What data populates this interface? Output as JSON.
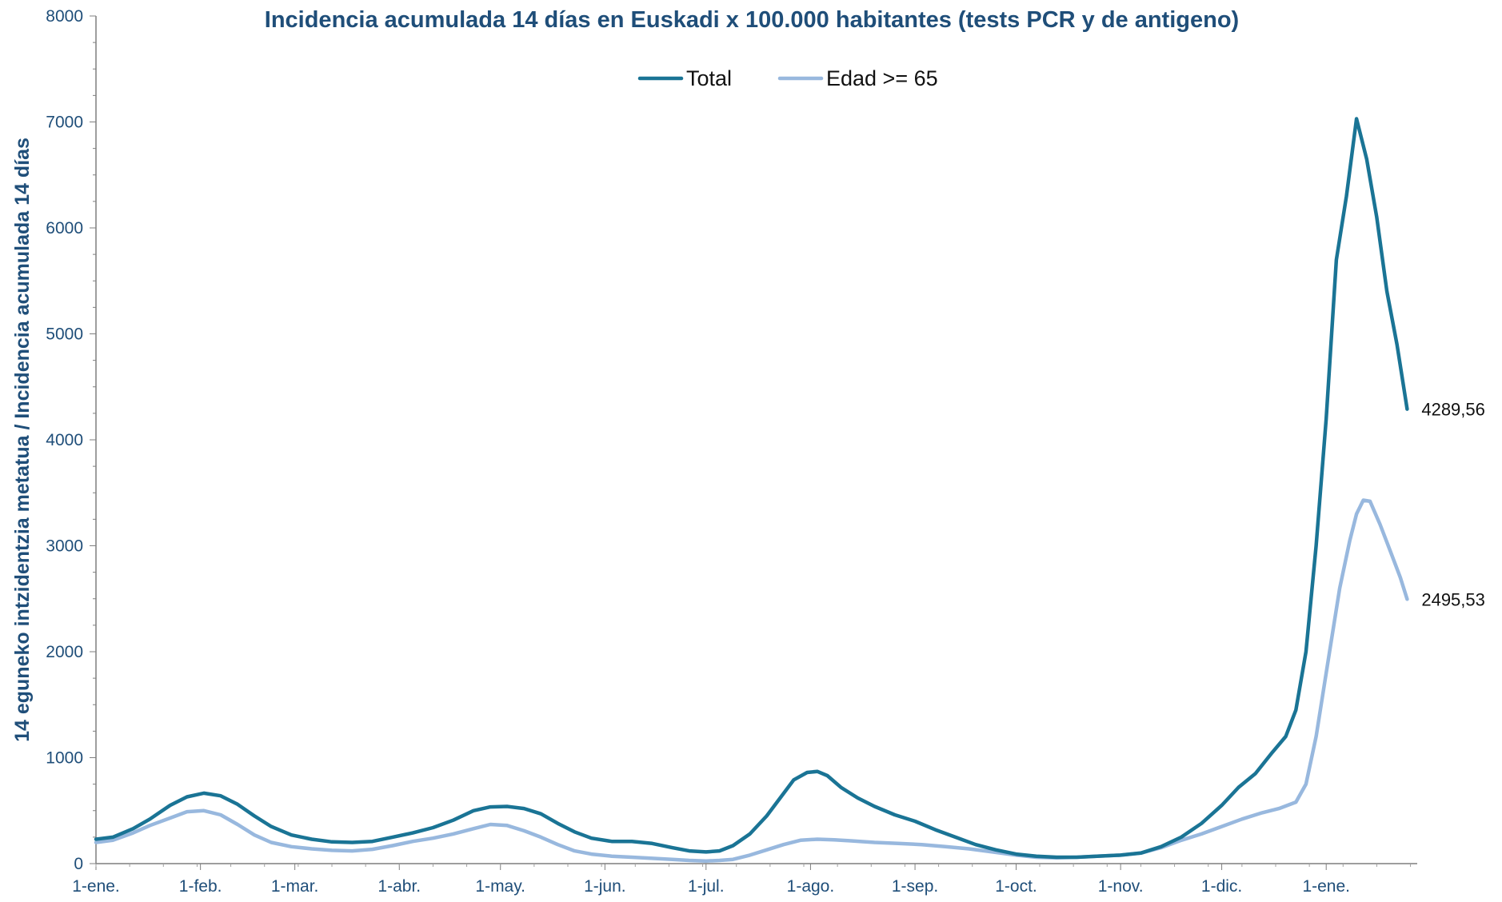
{
  "chart_data": {
    "type": "line",
    "title": "Incidencia acumulada 14 días en Euskadi x 100.000 habitantes (tests PCR y de antigeno)",
    "ylabel": "14 eguneko intzidentzia metatua / Incidencia acumulada 14 días",
    "xlabel": "",
    "ylim": [
      0,
      8000
    ],
    "yticks": [
      "0",
      "1000",
      "2000",
      "3000",
      "4000",
      "5000",
      "6000",
      "7000",
      "8000"
    ],
    "xlim": [
      "2021-01-01",
      "2022-01-28"
    ],
    "xticks": [
      {
        "date": "2021-01-01",
        "label": "1-ene."
      },
      {
        "date": "2021-02-01",
        "label": "1-feb."
      },
      {
        "date": "2021-03-01",
        "label": "1-mar."
      },
      {
        "date": "2021-04-01",
        "label": "1-abr."
      },
      {
        "date": "2021-05-01",
        "label": "1-may."
      },
      {
        "date": "2021-06-01",
        "label": "1-jun."
      },
      {
        "date": "2021-07-01",
        "label": "1-jul."
      },
      {
        "date": "2021-08-01",
        "label": "1-ago."
      },
      {
        "date": "2021-09-01",
        "label": "1-sep."
      },
      {
        "date": "2021-10-01",
        "label": "1-oct."
      },
      {
        "date": "2021-11-01",
        "label": "1-nov."
      },
      {
        "date": "2021-12-01",
        "label": "1-dic."
      },
      {
        "date": "2022-01-01",
        "label": "1-ene."
      }
    ],
    "legend_position": "top-center",
    "grid": false,
    "series": [
      {
        "name": "Total",
        "color": "#1a7495",
        "end_label": "4289,56",
        "points": [
          [
            "2021-01-01",
            230
          ],
          [
            "2021-01-06",
            250
          ],
          [
            "2021-01-12",
            330
          ],
          [
            "2021-01-17",
            420
          ],
          [
            "2021-01-23",
            550
          ],
          [
            "2021-01-28",
            630
          ],
          [
            "2021-02-02",
            665
          ],
          [
            "2021-02-07",
            640
          ],
          [
            "2021-02-12",
            560
          ],
          [
            "2021-02-17",
            450
          ],
          [
            "2021-02-22",
            350
          ],
          [
            "2021-02-28",
            270
          ],
          [
            "2021-03-06",
            230
          ],
          [
            "2021-03-12",
            205
          ],
          [
            "2021-03-18",
            200
          ],
          [
            "2021-03-24",
            210
          ],
          [
            "2021-03-30",
            250
          ],
          [
            "2021-04-05",
            290
          ],
          [
            "2021-04-11",
            340
          ],
          [
            "2021-04-17",
            410
          ],
          [
            "2021-04-23",
            500
          ],
          [
            "2021-04-28",
            535
          ],
          [
            "2021-05-03",
            540
          ],
          [
            "2021-05-08",
            520
          ],
          [
            "2021-05-13",
            470
          ],
          [
            "2021-05-18",
            380
          ],
          [
            "2021-05-23",
            300
          ],
          [
            "2021-05-28",
            240
          ],
          [
            "2021-06-03",
            210
          ],
          [
            "2021-06-09",
            210
          ],
          [
            "2021-06-15",
            190
          ],
          [
            "2021-06-21",
            150
          ],
          [
            "2021-06-26",
            120
          ],
          [
            "2021-07-01",
            110
          ],
          [
            "2021-07-05",
            120
          ],
          [
            "2021-07-09",
            170
          ],
          [
            "2021-07-14",
            280
          ],
          [
            "2021-07-19",
            450
          ],
          [
            "2021-07-23",
            620
          ],
          [
            "2021-07-27",
            790
          ],
          [
            "2021-07-31",
            860
          ],
          [
            "2021-08-03",
            870
          ],
          [
            "2021-08-06",
            830
          ],
          [
            "2021-08-10",
            720
          ],
          [
            "2021-08-15",
            620
          ],
          [
            "2021-08-20",
            540
          ],
          [
            "2021-08-26",
            460
          ],
          [
            "2021-09-01",
            400
          ],
          [
            "2021-09-07",
            320
          ],
          [
            "2021-09-13",
            250
          ],
          [
            "2021-09-19",
            180
          ],
          [
            "2021-09-25",
            130
          ],
          [
            "2021-10-01",
            90
          ],
          [
            "2021-10-07",
            70
          ],
          [
            "2021-10-13",
            60
          ],
          [
            "2021-10-19",
            60
          ],
          [
            "2021-10-25",
            70
          ],
          [
            "2021-11-01",
            80
          ],
          [
            "2021-11-07",
            100
          ],
          [
            "2021-11-13",
            160
          ],
          [
            "2021-11-19",
            250
          ],
          [
            "2021-11-25",
            380
          ],
          [
            "2021-12-01",
            550
          ],
          [
            "2021-12-06",
            720
          ],
          [
            "2021-12-11",
            850
          ],
          [
            "2021-12-16",
            1050
          ],
          [
            "2021-12-20",
            1200
          ],
          [
            "2021-12-23",
            1450
          ],
          [
            "2021-12-26",
            2000
          ],
          [
            "2021-12-29",
            3000
          ],
          [
            "2022-01-01",
            4200
          ],
          [
            "2022-01-04",
            5700
          ],
          [
            "2022-01-07",
            6300
          ],
          [
            "2022-01-10",
            7030
          ],
          [
            "2022-01-13",
            6650
          ],
          [
            "2022-01-16",
            6100
          ],
          [
            "2022-01-19",
            5400
          ],
          [
            "2022-01-22",
            4900
          ],
          [
            "2022-01-25",
            4289.56
          ]
        ]
      },
      {
        "name": "Edad >= 65",
        "color": "#98b8de",
        "end_label": "2495,53",
        "points": [
          [
            "2021-01-01",
            200
          ],
          [
            "2021-01-06",
            220
          ],
          [
            "2021-01-12",
            290
          ],
          [
            "2021-01-17",
            360
          ],
          [
            "2021-01-23",
            430
          ],
          [
            "2021-01-28",
            490
          ],
          [
            "2021-02-02",
            500
          ],
          [
            "2021-02-07",
            460
          ],
          [
            "2021-02-12",
            370
          ],
          [
            "2021-02-17",
            270
          ],
          [
            "2021-02-22",
            200
          ],
          [
            "2021-02-28",
            160
          ],
          [
            "2021-03-06",
            140
          ],
          [
            "2021-03-12",
            125
          ],
          [
            "2021-03-18",
            120
          ],
          [
            "2021-03-24",
            135
          ],
          [
            "2021-03-30",
            170
          ],
          [
            "2021-04-05",
            210
          ],
          [
            "2021-04-11",
            240
          ],
          [
            "2021-04-17",
            280
          ],
          [
            "2021-04-23",
            330
          ],
          [
            "2021-04-28",
            370
          ],
          [
            "2021-05-03",
            360
          ],
          [
            "2021-05-08",
            310
          ],
          [
            "2021-05-13",
            250
          ],
          [
            "2021-05-18",
            180
          ],
          [
            "2021-05-23",
            120
          ],
          [
            "2021-05-28",
            90
          ],
          [
            "2021-06-03",
            70
          ],
          [
            "2021-06-09",
            60
          ],
          [
            "2021-06-15",
            50
          ],
          [
            "2021-06-21",
            40
          ],
          [
            "2021-06-26",
            30
          ],
          [
            "2021-07-01",
            25
          ],
          [
            "2021-07-05",
            30
          ],
          [
            "2021-07-09",
            40
          ],
          [
            "2021-07-14",
            80
          ],
          [
            "2021-07-19",
            130
          ],
          [
            "2021-07-24",
            180
          ],
          [
            "2021-07-29",
            220
          ],
          [
            "2021-08-03",
            230
          ],
          [
            "2021-08-08",
            225
          ],
          [
            "2021-08-13",
            215
          ],
          [
            "2021-08-20",
            200
          ],
          [
            "2021-08-27",
            190
          ],
          [
            "2021-09-03",
            180
          ],
          [
            "2021-09-10",
            160
          ],
          [
            "2021-09-17",
            140
          ],
          [
            "2021-09-24",
            110
          ],
          [
            "2021-10-01",
            80
          ],
          [
            "2021-10-07",
            60
          ],
          [
            "2021-10-13",
            55
          ],
          [
            "2021-10-19",
            60
          ],
          [
            "2021-10-25",
            70
          ],
          [
            "2021-11-01",
            80
          ],
          [
            "2021-11-07",
            100
          ],
          [
            "2021-11-13",
            150
          ],
          [
            "2021-11-19",
            220
          ],
          [
            "2021-11-25",
            280
          ],
          [
            "2021-12-01",
            350
          ],
          [
            "2021-12-07",
            420
          ],
          [
            "2021-12-13",
            480
          ],
          [
            "2021-12-18",
            520
          ],
          [
            "2021-12-23",
            580
          ],
          [
            "2021-12-26",
            750
          ],
          [
            "2021-12-29",
            1200
          ],
          [
            "2022-01-02",
            2000
          ],
          [
            "2022-01-05",
            2600
          ],
          [
            "2022-01-08",
            3050
          ],
          [
            "2022-01-10",
            3300
          ],
          [
            "2022-01-12",
            3430
          ],
          [
            "2022-01-14",
            3420
          ],
          [
            "2022-01-17",
            3200
          ],
          [
            "2022-01-20",
            2950
          ],
          [
            "2022-01-23",
            2700
          ],
          [
            "2022-01-25",
            2495.53
          ]
        ]
      }
    ]
  }
}
